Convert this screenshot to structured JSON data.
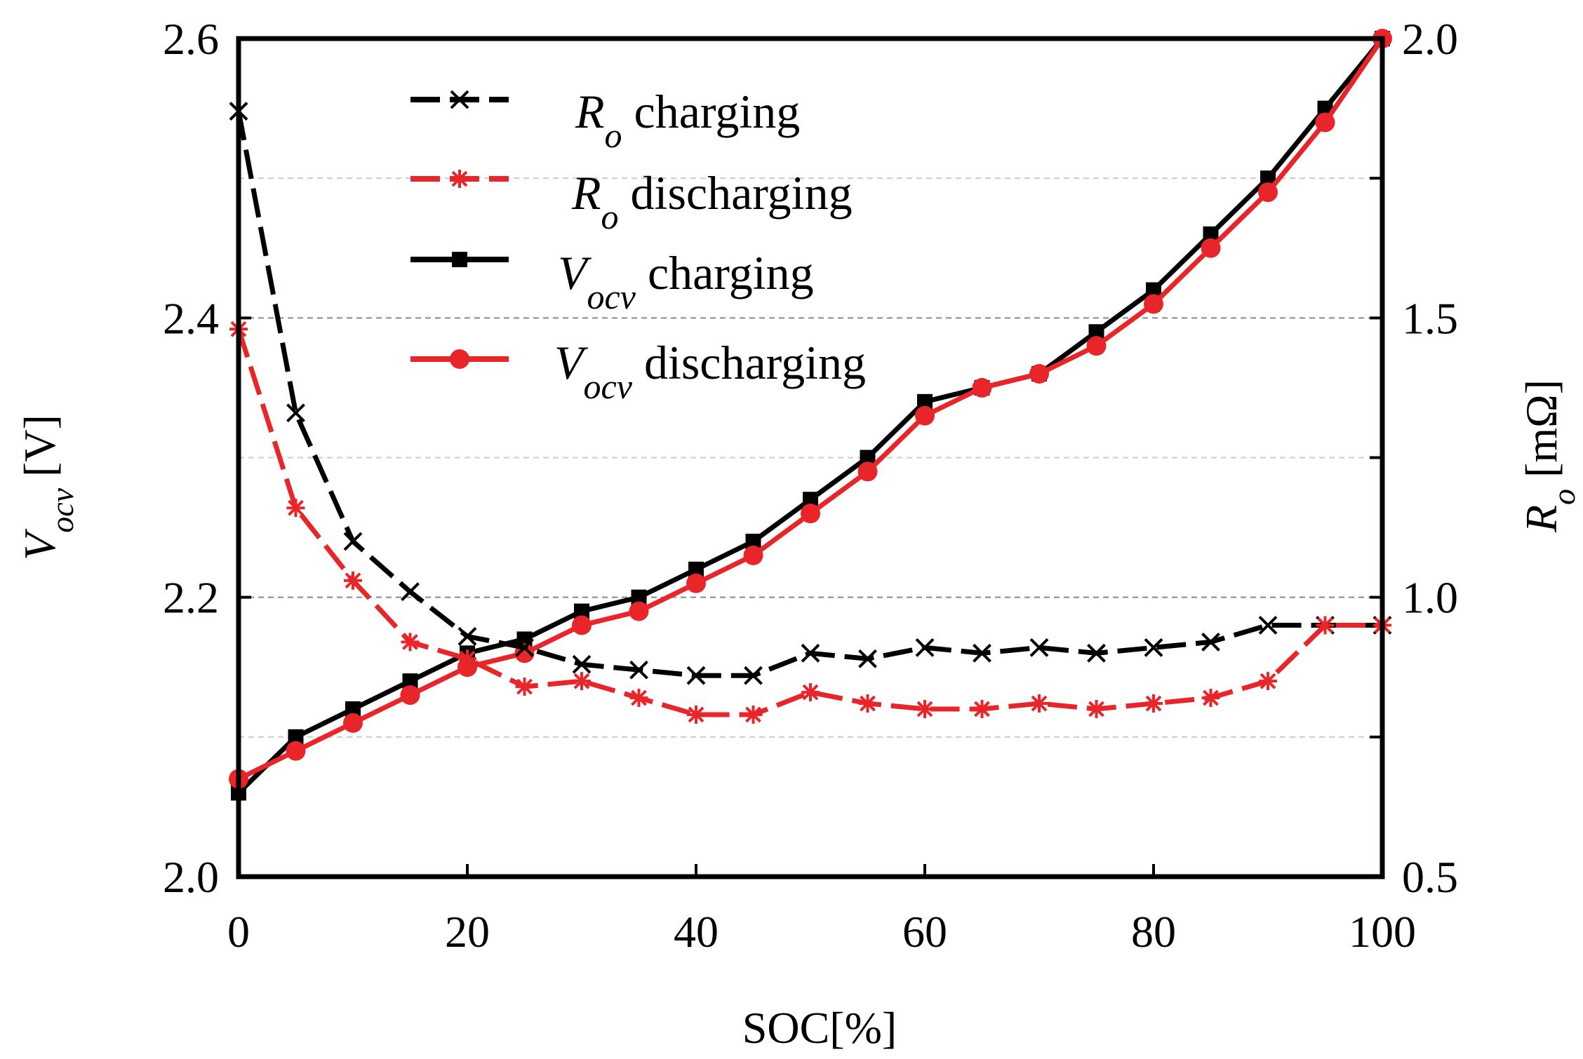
{
  "chart_data": {
    "type": "line",
    "x": [
      0,
      5,
      10,
      15,
      20,
      25,
      30,
      35,
      40,
      45,
      50,
      55,
      60,
      65,
      70,
      75,
      80,
      85,
      90,
      95,
      100
    ],
    "xlabel": "SOC[%]",
    "xlim": [
      0,
      100
    ],
    "xticks": [
      "0",
      "20",
      "40",
      "60",
      "80",
      "100"
    ],
    "y_left": {
      "label_symbol": "V",
      "label_subscript": "ocv",
      "label_unit": " [V]",
      "lim": [
        2.0,
        2.6
      ],
      "ticks": [
        "2.0",
        "2.2",
        "2.4",
        "2.6"
      ]
    },
    "y_right": {
      "label_symbol": "R",
      "label_subscript": "o",
      "label_unit": " [mΩ]",
      "lim": [
        0.5,
        2.0
      ],
      "ticks": [
        "0.5",
        "1.0",
        "1.5",
        "2.0"
      ]
    },
    "series": [
      {
        "key": "r0-charging",
        "legend_symbol": "R",
        "legend_subscript": "o",
        "legend_text": " charging",
        "axis": "right",
        "color": "#000000",
        "dash": true,
        "marker": "x",
        "values": [
          1.87,
          1.33,
          1.1,
          1.01,
          0.93,
          0.91,
          0.88,
          0.87,
          0.86,
          0.86,
          0.9,
          0.89,
          0.91,
          0.9,
          0.91,
          0.9,
          0.91,
          0.92,
          0.95,
          0.95,
          0.95
        ]
      },
      {
        "key": "r0-discharging",
        "legend_symbol": "R",
        "legend_subscript": "o",
        "legend_text": " discharging",
        "axis": "right",
        "color": "#e8262a",
        "dash": true,
        "marker": "asterisk",
        "values": [
          1.48,
          1.16,
          1.03,
          0.92,
          0.89,
          0.84,
          0.85,
          0.82,
          0.79,
          0.79,
          0.83,
          0.81,
          0.8,
          0.8,
          0.81,
          0.8,
          0.81,
          0.82,
          0.85,
          0.95,
          0.95
        ]
      },
      {
        "key": "vocv-charging",
        "legend_symbol": "V",
        "legend_subscript": "ocv",
        "legend_text": " charging",
        "axis": "left",
        "color": "#000000",
        "dash": false,
        "marker": "square",
        "values": [
          2.06,
          2.1,
          2.12,
          2.14,
          2.16,
          2.17,
          2.19,
          2.2,
          2.22,
          2.24,
          2.27,
          2.3,
          2.34,
          2.35,
          2.36,
          2.39,
          2.42,
          2.46,
          2.5,
          2.55,
          2.6
        ]
      },
      {
        "key": "vocv-discharging",
        "legend_symbol": "V",
        "legend_subscript": "ocv",
        "legend_text": " discharging",
        "axis": "left",
        "color": "#e8262a",
        "dash": false,
        "marker": "circle",
        "values": [
          2.07,
          2.09,
          2.11,
          2.13,
          2.15,
          2.16,
          2.18,
          2.19,
          2.21,
          2.23,
          2.26,
          2.29,
          2.33,
          2.35,
          2.36,
          2.38,
          2.41,
          2.45,
          2.49,
          2.54,
          2.6
        ]
      }
    ],
    "grid_right_values": [
      0.75,
      1.0,
      1.25,
      1.5,
      1.75
    ]
  }
}
